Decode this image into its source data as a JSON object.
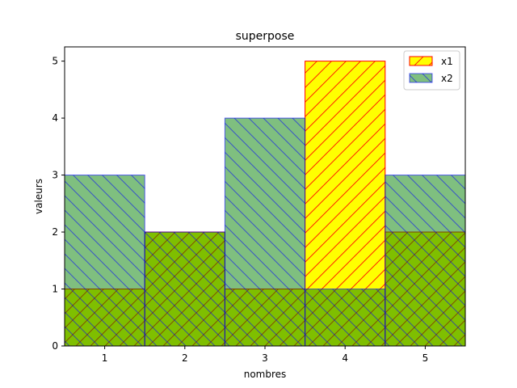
{
  "chart_data": {
    "type": "bar",
    "title": "superpose",
    "xlabel": "nombres",
    "ylabel": "valeurs",
    "categories": [
      1,
      2,
      3,
      4,
      5
    ],
    "xlim": [
      0.5,
      5.5
    ],
    "ylim": [
      0,
      5.25
    ],
    "xticks": [
      "1",
      "2",
      "3",
      "4",
      "5"
    ],
    "yticks": [
      "0",
      "1",
      "2",
      "3",
      "4",
      "5"
    ],
    "bar_width": 1.0,
    "grid": false,
    "legend_position": "top-right",
    "series": [
      {
        "name": "x1",
        "values": [
          1,
          2,
          1,
          5,
          2
        ],
        "fill": "#ffff00",
        "edge": "#ff0000",
        "hatch": "/"
      },
      {
        "name": "x2",
        "values": [
          3,
          2,
          4,
          1,
          3
        ],
        "fill": "#008000",
        "alpha": 0.5,
        "edge": "#0000ff",
        "hatch": "\\"
      }
    ]
  }
}
